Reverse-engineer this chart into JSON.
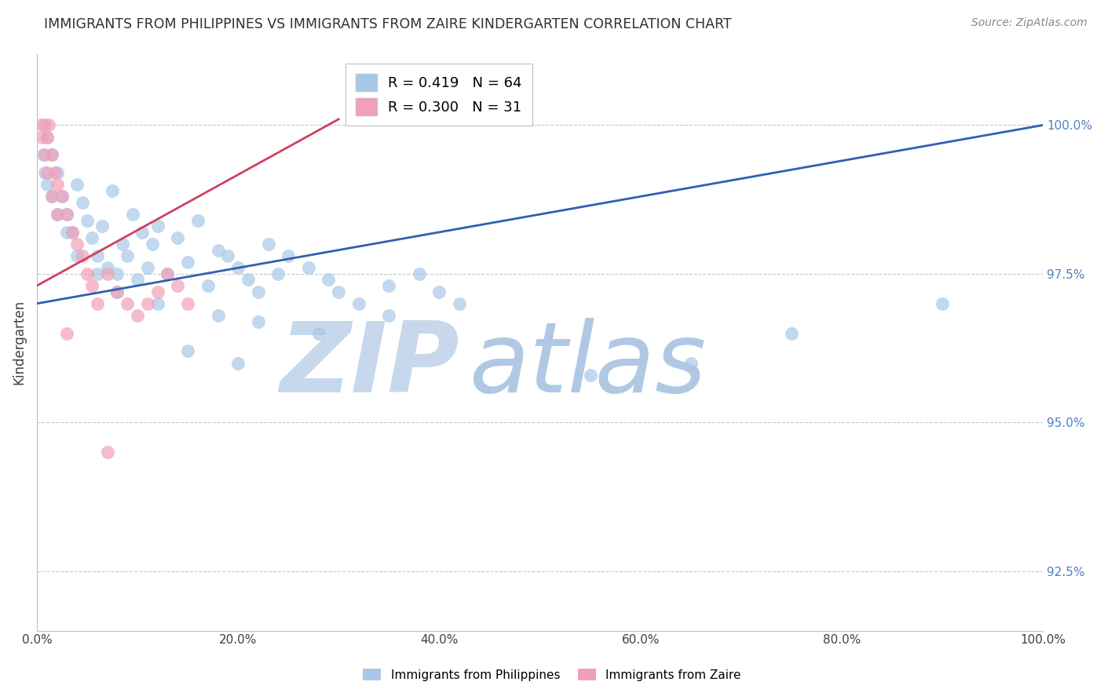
{
  "title": "IMMIGRANTS FROM PHILIPPINES VS IMMIGRANTS FROM ZAIRE KINDERGARTEN CORRELATION CHART",
  "source": "Source: ZipAtlas.com",
  "ylabel": "Kindergarten",
  "watermark_zip": "ZIP",
  "watermark_atlas": "atlas",
  "x_min": 0.0,
  "x_max": 100.0,
  "y_min": 91.5,
  "y_max": 101.2,
  "y_ticks": [
    92.5,
    95.0,
    97.5,
    100.0
  ],
  "x_ticks": [
    0.0,
    20.0,
    40.0,
    60.0,
    80.0,
    100.0
  ],
  "philippines_R": 0.419,
  "philippines_N": 64,
  "zaire_R": 0.3,
  "zaire_N": 31,
  "blue_color": "#A8C8E8",
  "pink_color": "#F0A0B8",
  "blue_line_color": "#3060B0",
  "pink_line_color": "#D04060",
  "grid_color": "#C0C8D0",
  "title_color": "#303030",
  "axis_label_color": "#404040",
  "right_axis_color": "#5080C0",
  "watermark_color_zip": "#C8D8EC",
  "watermark_color_atlas": "#B0C8E4",
  "philippines_x": [
    1.0,
    1.5,
    2.0,
    2.5,
    3.0,
    3.5,
    4.0,
    4.5,
    5.0,
    5.5,
    6.0,
    6.5,
    7.0,
    7.5,
    8.0,
    8.5,
    9.0,
    9.5,
    10.0,
    10.5,
    11.0,
    11.5,
    12.0,
    13.0,
    14.0,
    15.0,
    16.0,
    17.0,
    18.0,
    19.0,
    20.0,
    21.0,
    22.0,
    23.0,
    24.0,
    25.0,
    27.0,
    29.0,
    30.0,
    32.0,
    35.0,
    38.0,
    40.0,
    42.0,
    35.0,
    28.0,
    18.0,
    22.0,
    12.0,
    8.0,
    6.0,
    4.0,
    3.0,
    2.0,
    1.5,
    1.0,
    0.8,
    0.6,
    55.0,
    65.0,
    75.0,
    90.0,
    20.0,
    15.0
  ],
  "philippines_y": [
    99.8,
    99.5,
    99.2,
    98.8,
    98.5,
    98.2,
    99.0,
    98.7,
    98.4,
    98.1,
    97.8,
    98.3,
    97.6,
    98.9,
    97.5,
    98.0,
    97.8,
    98.5,
    97.4,
    98.2,
    97.6,
    98.0,
    98.3,
    97.5,
    98.1,
    97.7,
    98.4,
    97.3,
    97.9,
    97.8,
    97.6,
    97.4,
    97.2,
    98.0,
    97.5,
    97.8,
    97.6,
    97.4,
    97.2,
    97.0,
    97.3,
    97.5,
    97.2,
    97.0,
    96.8,
    96.5,
    96.8,
    96.7,
    97.0,
    97.2,
    97.5,
    97.8,
    98.2,
    98.5,
    98.8,
    99.0,
    99.2,
    99.5,
    95.8,
    96.0,
    96.5,
    97.0,
    96.0,
    96.2
  ],
  "zaire_x": [
    0.5,
    0.8,
    1.0,
    1.2,
    1.5,
    1.8,
    2.0,
    2.5,
    3.0,
    3.5,
    4.0,
    4.5,
    5.0,
    5.5,
    6.0,
    7.0,
    8.0,
    9.0,
    10.0,
    11.0,
    12.0,
    13.0,
    14.0,
    15.0,
    2.0,
    1.5,
    1.0,
    0.8,
    0.5,
    3.0,
    7.0
  ],
  "zaire_y": [
    100.0,
    100.0,
    99.8,
    100.0,
    99.5,
    99.2,
    99.0,
    98.8,
    98.5,
    98.2,
    98.0,
    97.8,
    97.5,
    97.3,
    97.0,
    97.5,
    97.2,
    97.0,
    96.8,
    97.0,
    97.2,
    97.5,
    97.3,
    97.0,
    98.5,
    98.8,
    99.2,
    99.5,
    99.8,
    96.5,
    94.5
  ],
  "blue_trend_x0": 0.0,
  "blue_trend_y0": 97.0,
  "blue_trend_x1": 100.0,
  "blue_trend_y1": 100.0,
  "pink_trend_x0": 0.0,
  "pink_trend_y0": 97.3,
  "pink_trend_x1": 30.0,
  "pink_trend_y1": 100.1
}
